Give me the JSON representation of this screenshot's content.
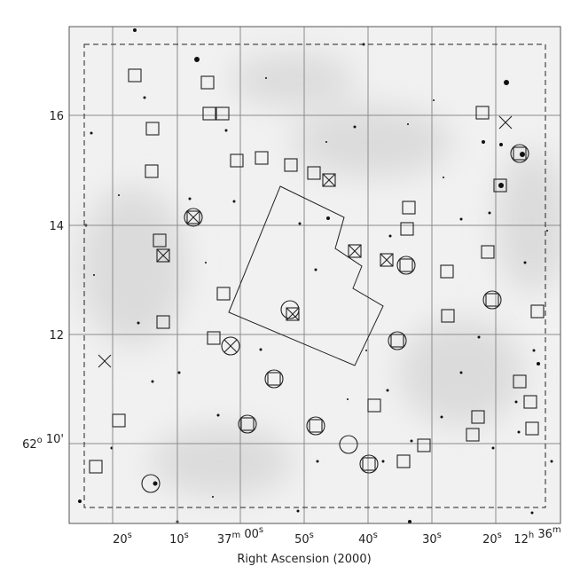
{
  "axes": {
    "x_label": "Right Ascension (2000)",
    "x_ticks": [
      [
        {
          "text": "20"
        },
        {
          "sup": "s"
        }
      ],
      [
        {
          "text": "10"
        },
        {
          "sup": "s"
        }
      ],
      [
        {
          "text": "37"
        },
        {
          "sup": "m"
        },
        {
          "text": " 00"
        },
        {
          "sup": "s"
        }
      ],
      [
        {
          "text": "50"
        },
        {
          "sup": "s"
        }
      ],
      [
        {
          "text": "40"
        },
        {
          "sup": "s"
        }
      ],
      [
        {
          "text": "30"
        },
        {
          "sup": "s"
        }
      ],
      [
        {
          "text": "20"
        },
        {
          "sup": "s"
        }
      ],
      [
        {
          "text": "12"
        },
        {
          "sup": "h"
        },
        {
          "text": " 36"
        },
        {
          "sup": "m"
        }
      ]
    ],
    "y_ticks": [
      [
        {
          "text": "16"
        }
      ],
      [
        {
          "text": "14"
        }
      ],
      [
        {
          "text": "12"
        }
      ],
      [
        {
          "text": "62"
        },
        {
          "sup": "o"
        },
        {
          "text": " 10'"
        }
      ]
    ]
  }
}
